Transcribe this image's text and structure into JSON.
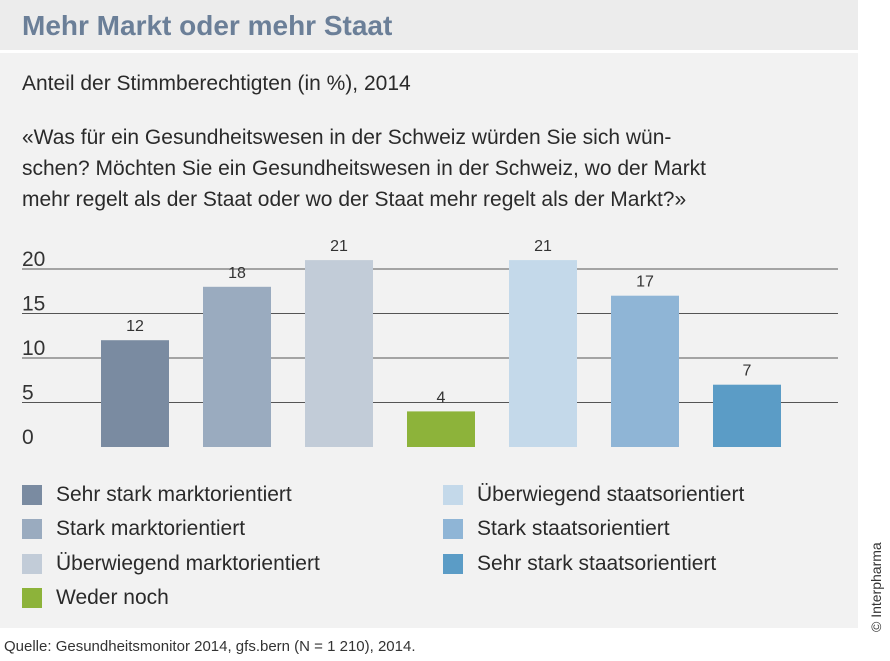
{
  "header": {
    "title": "Mehr Markt oder mehr Staat"
  },
  "subtitle": "Anteil der Stimmberechtigten (in %), 2014",
  "question_lines": [
    "«Was für ein Gesundheitswesen in der Schweiz würden Sie sich wün-",
    "schen? Möchten Sie ein Gesundheitswesen in der Schweiz, wo der Markt",
    "mehr regelt als der Staat oder wo der Staat mehr regelt als der Markt?»"
  ],
  "chart_data": {
    "type": "bar",
    "categories": [
      "Sehr stark marktorientiert",
      "Stark marktorientiert",
      "Überwiegend marktorientiert",
      "Weder noch",
      "Überwiegend staatsorientiert",
      "Stark staatsorientiert",
      "Sehr stark staatsorientiert"
    ],
    "values": [
      12,
      18,
      21,
      4,
      21,
      17,
      7
    ],
    "colors": [
      "#7a8ba1",
      "#9aabbf",
      "#c2ccd8",
      "#8db33a",
      "#c4d9ea",
      "#8fb5d6",
      "#5b9cc6"
    ],
    "ylim": [
      0,
      20
    ],
    "yticks": [
      0,
      5,
      10,
      15,
      20
    ],
    "grid": true,
    "legend_position": "bottom"
  },
  "legend": {
    "left": [
      {
        "label": "Sehr stark marktorientiert",
        "color": "#7a8ba1"
      },
      {
        "label": "Stark marktorientiert",
        "color": "#9aabbf"
      },
      {
        "label": "Überwiegend marktorientiert",
        "color": "#c2ccd8"
      },
      {
        "label": "Weder noch",
        "color": "#8db33a"
      }
    ],
    "right": [
      {
        "label": "Überwiegend staatsorientiert",
        "color": "#c4d9ea"
      },
      {
        "label": "Stark staatsorientiert",
        "color": "#8fb5d6"
      },
      {
        "label": "Sehr stark staatsorientiert",
        "color": "#5b9cc6"
      }
    ]
  },
  "copyright": "© Interpharma",
  "source": "Quelle: Gesundheitsmonitor 2014, gfs.bern (N = 1 210), 2014."
}
